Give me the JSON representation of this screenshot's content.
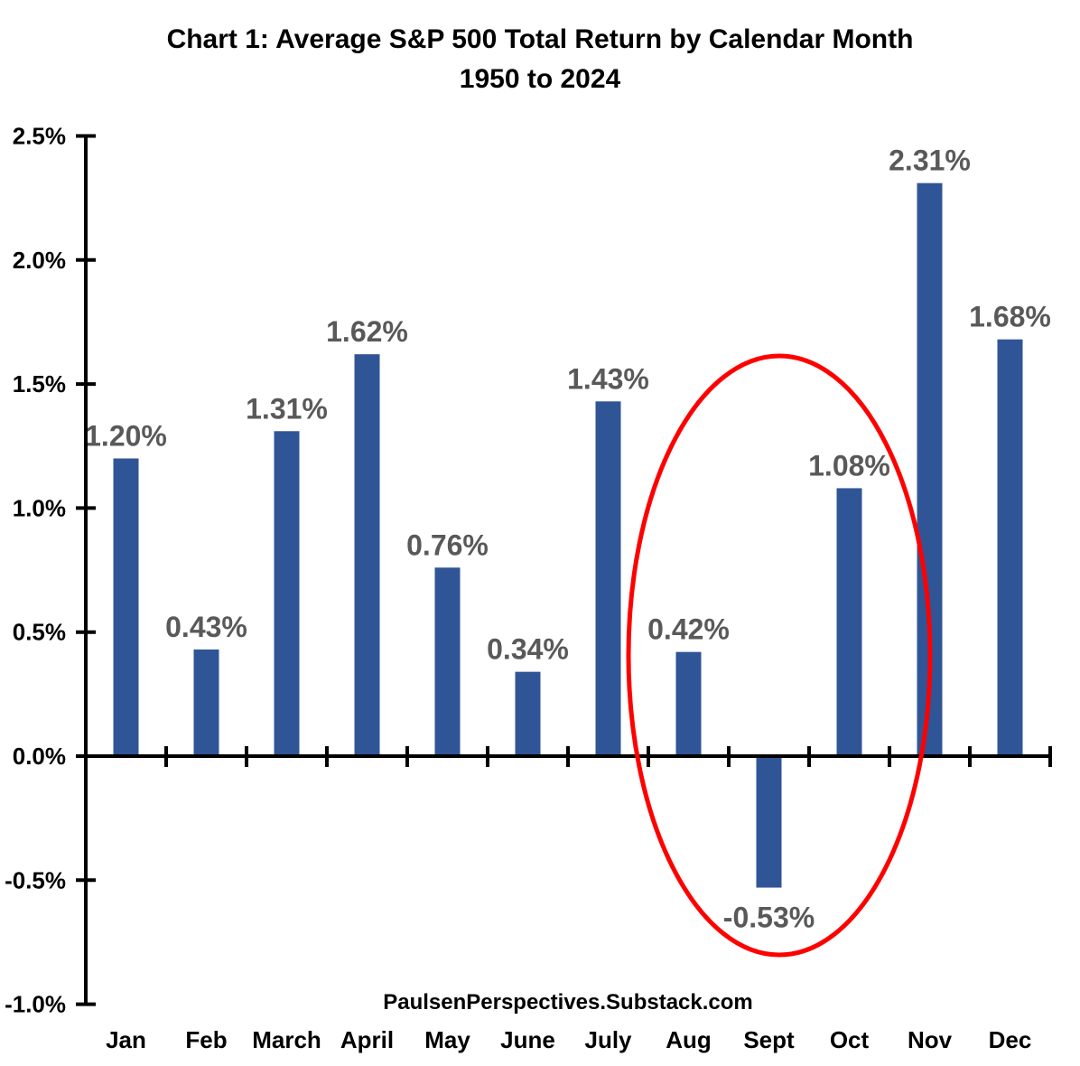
{
  "title": {
    "line1": "Chart 1: Average S&P 500 Total Return by Calendar Month",
    "line2": "1950 to 2024"
  },
  "chart_data": {
    "type": "bar",
    "categories": [
      "Jan",
      "Feb",
      "March",
      "April",
      "May",
      "June",
      "July",
      "Aug",
      "Sept",
      "Oct",
      "Nov",
      "Dec"
    ],
    "values": [
      1.2,
      0.43,
      1.31,
      1.62,
      0.76,
      0.34,
      1.43,
      0.42,
      -0.53,
      1.08,
      2.31,
      1.68
    ],
    "bar_labels": [
      "1.20%",
      "0.43%",
      "1.31%",
      "1.62%",
      "0.76%",
      "0.34%",
      "1.43%",
      "0.42%",
      "-0.53%",
      "1.08%",
      "2.31%",
      "1.68%"
    ],
    "title": "Chart 1: Average S&P 500 Total Return by Calendar Month 1950 to 2024",
    "xlabel": "PaulsenPerspectives.Substack.com",
    "ylabel": "",
    "ylim": [
      -1.0,
      2.5
    ],
    "ytick_step": 0.5,
    "ytick_labels": [
      "2.5%",
      "2.0%",
      "1.5%",
      "1.0%",
      "0.5%",
      "0.0%",
      "-0.5%",
      "-1.0%"
    ],
    "grid": false,
    "legend_position": "none",
    "annotation": {
      "shape": "ellipse",
      "highlights_categories": [
        "Aug",
        "Sept",
        "Oct"
      ],
      "color": "#FF0000"
    }
  },
  "colors": {
    "bar": "#2F5597",
    "data_label": "#595959",
    "axis": "#000000",
    "annotation": "#FF0000",
    "background": "#FFFFFF"
  }
}
